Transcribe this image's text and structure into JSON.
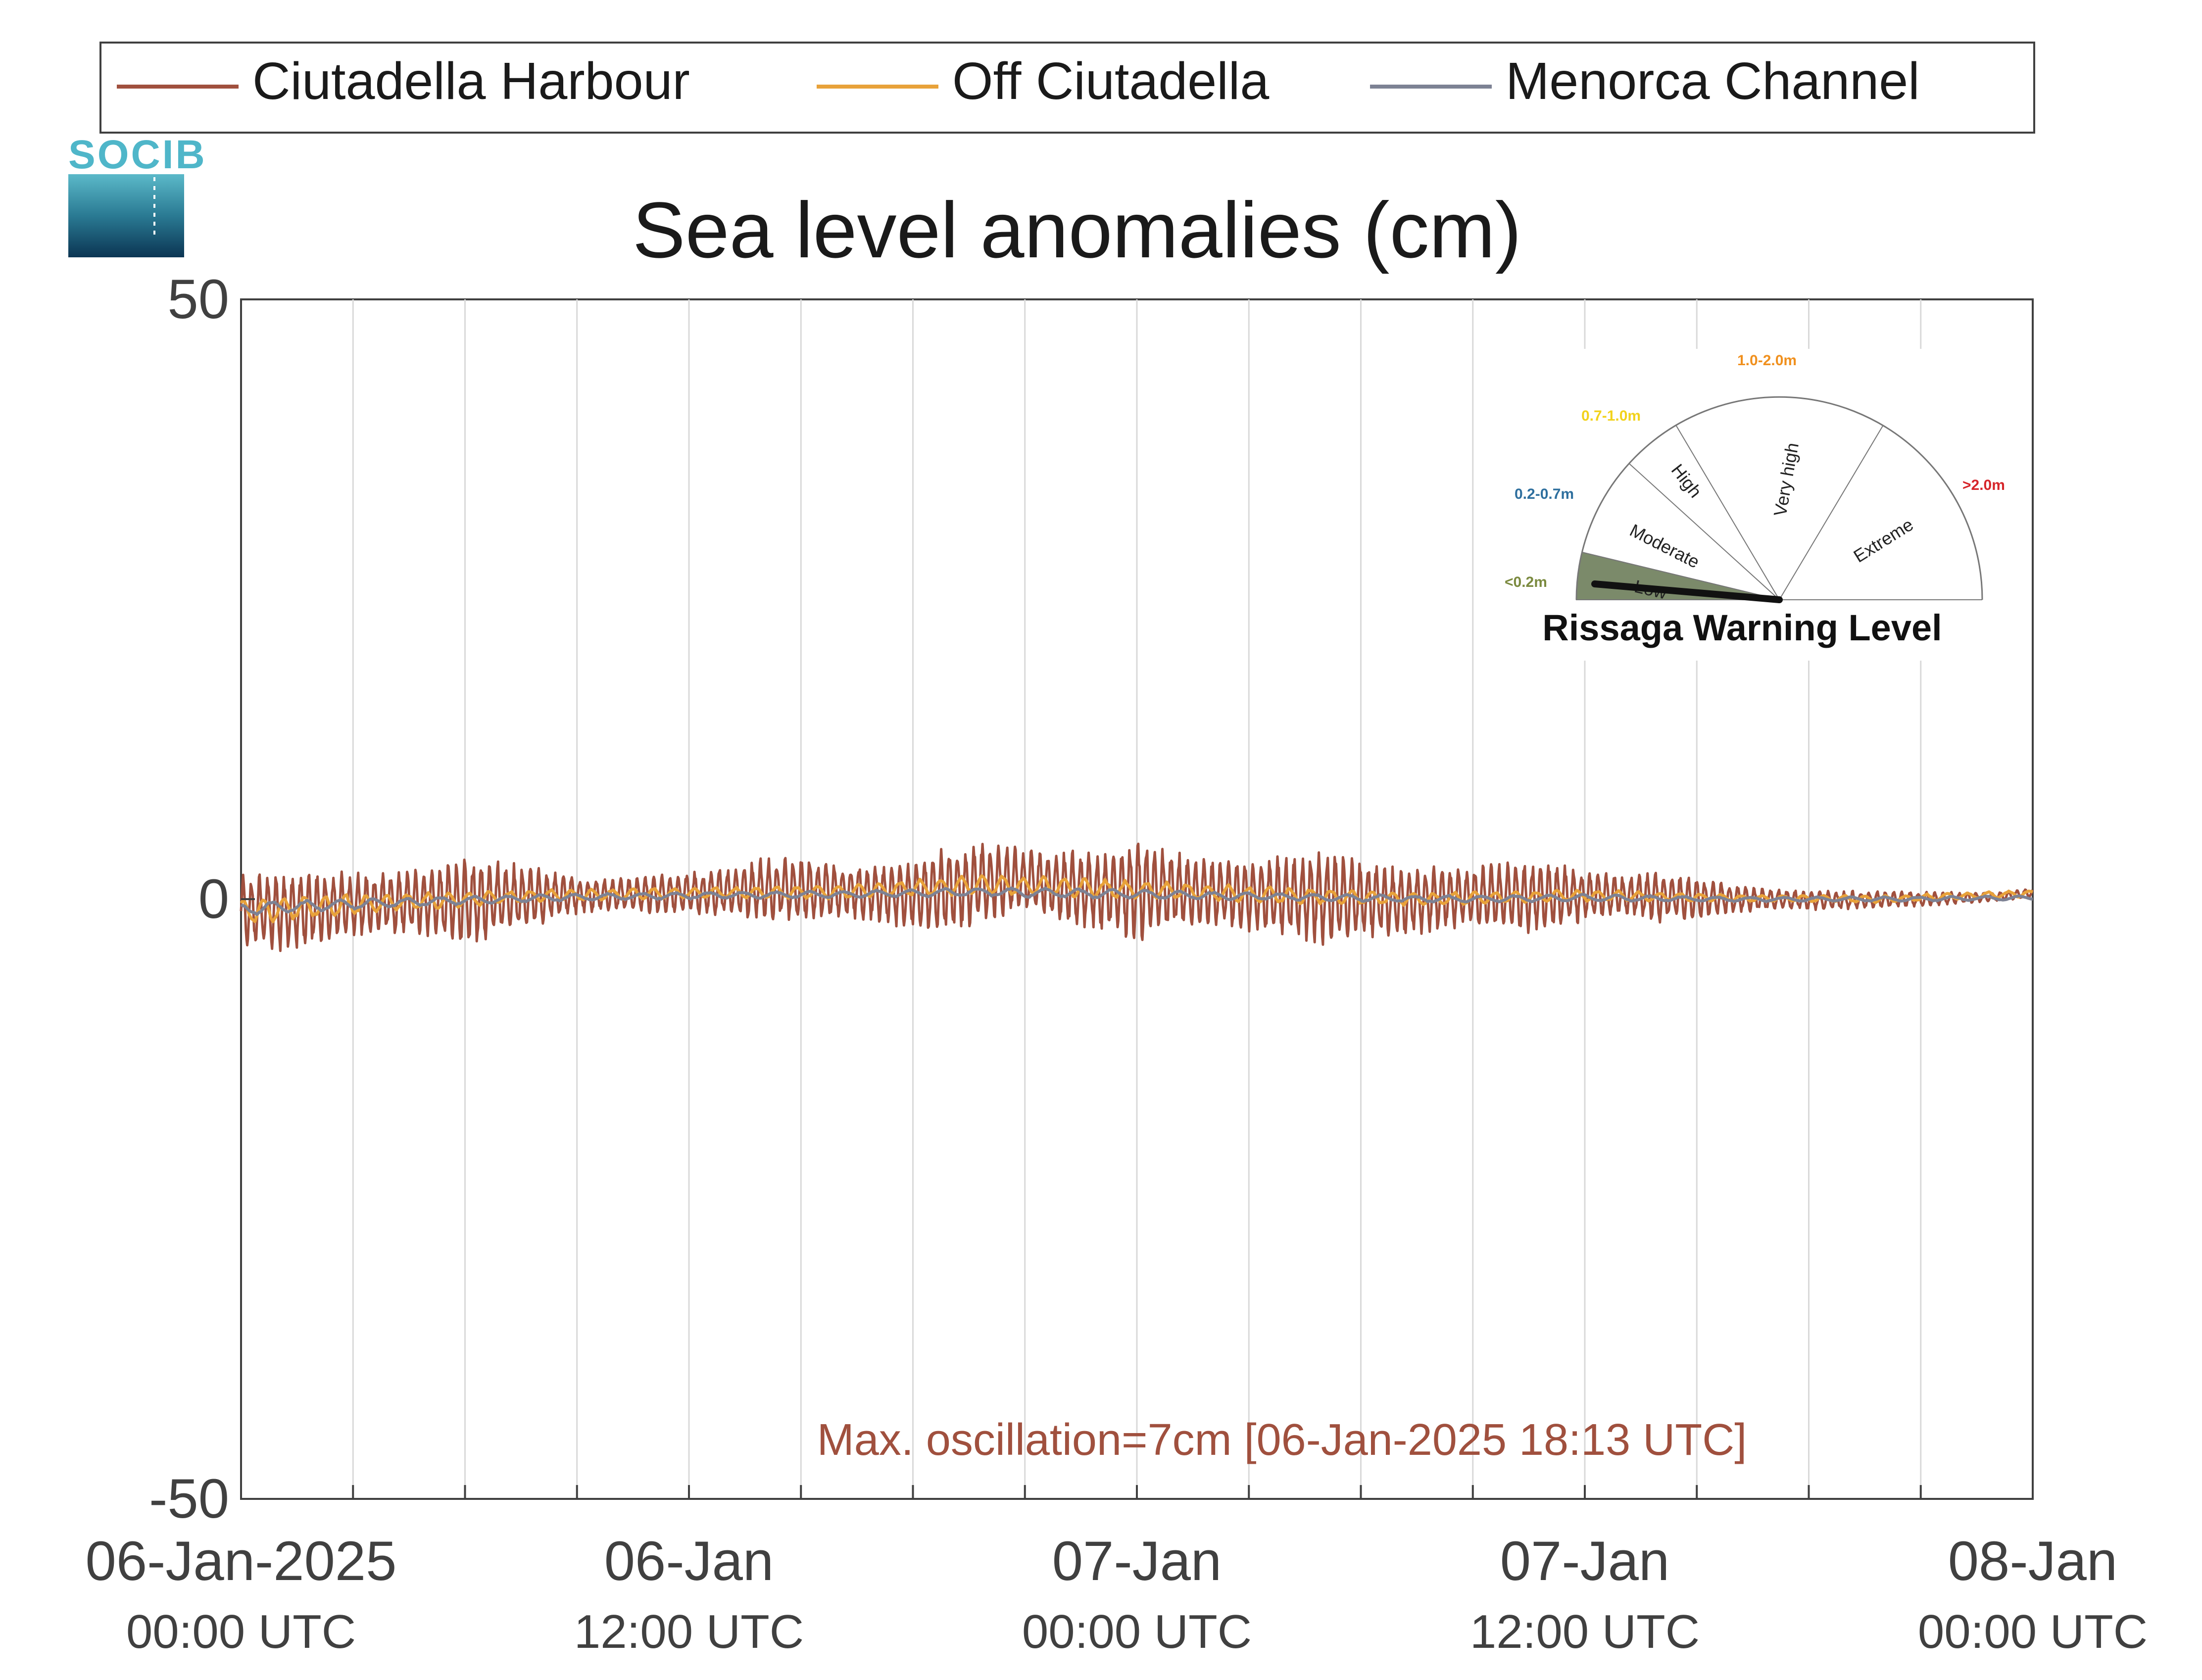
{
  "chart_data": {
    "type": "line",
    "title": "Sea level anomalies (cm)",
    "xlabel": "",
    "ylabel": "",
    "ylim": [
      -50,
      50
    ],
    "yticks": [
      {
        "value": 50,
        "label": "50"
      },
      {
        "value": 0,
        "label": "0"
      },
      {
        "value": -50,
        "label": "-50"
      }
    ],
    "xrange_hours": [
      0,
      48
    ],
    "xtick_labels": [
      {
        "hour": 0,
        "date": "06-Jan-2025",
        "time": "00:00 UTC"
      },
      {
        "hour": 12,
        "date": "06-Jan",
        "time": "12:00 UTC"
      },
      {
        "hour": 24,
        "date": "07-Jan",
        "time": "00:00 UTC"
      },
      {
        "hour": 36,
        "date": "07-Jan",
        "time": "12:00 UTC"
      },
      {
        "hour": 48,
        "date": "08-Jan",
        "time": "00:00 UTC"
      }
    ],
    "grid": "vertical every 3 hours",
    "legend_placement": "top",
    "series": [
      {
        "name": "Ciutadella Harbour",
        "color": "#a0503e",
        "envelope_hours": [
          0,
          1,
          2,
          3,
          4,
          5,
          6,
          7,
          8,
          9,
          10,
          11,
          12,
          13,
          14,
          15,
          16,
          17,
          18,
          19,
          20,
          21,
          22,
          23,
          24,
          25,
          26,
          27,
          28,
          29,
          30,
          31,
          32,
          33,
          34,
          35,
          36,
          37,
          38,
          39,
          40,
          41,
          42,
          43,
          44,
          45,
          46,
          47,
          48
        ],
        "envelope_amplitude_cm": [
          3.0,
          3.5,
          3.2,
          2.8,
          2.6,
          3.0,
          3.8,
          3.4,
          2.4,
          1.6,
          1.4,
          1.6,
          1.8,
          2.2,
          2.8,
          3.0,
          2.4,
          2.4,
          3.2,
          3.8,
          3.4,
          2.8,
          3.2,
          3.6,
          4.4,
          3.4,
          2.8,
          3.2,
          3.6,
          4.0,
          3.6,
          3.0,
          2.8,
          2.6,
          3.0,
          3.2,
          2.2,
          1.8,
          2.2,
          1.8,
          1.2,
          0.9,
          0.8,
          0.8,
          0.7,
          0.6,
          0.5,
          0.4,
          0.4
        ],
        "baseline_cm": [
          -1.0,
          -1.0,
          -0.8,
          -0.5,
          -0.3,
          -0.2,
          -0.2,
          0.0,
          0.2,
          0.3,
          0.4,
          0.4,
          0.5,
          0.6,
          0.8,
          0.8,
          0.7,
          0.5,
          0.3,
          0.8,
          1.4,
          1.6,
          1.0,
          0.6,
          0.8,
          0.7,
          0.5,
          0.3,
          0.2,
          0.1,
          0.0,
          -0.2,
          0.0,
          0.2,
          0.3,
          0.2,
          0.3,
          0.3,
          0.2,
          0.1,
          0.0,
          0.0,
          -0.1,
          -0.1,
          0.0,
          0.0,
          0.1,
          0.2,
          0.5
        ]
      },
      {
        "name": "Off Ciutadella",
        "color": "#e8a23a",
        "envelope_hours": [
          0,
          4,
          8,
          12,
          16,
          20,
          24,
          28,
          32,
          36,
          40,
          44,
          48
        ],
        "envelope_amplitude_cm": [
          1.2,
          0.8,
          0.5,
          0.5,
          0.6,
          0.9,
          0.8,
          0.7,
          0.6,
          0.5,
          0.3,
          0.3,
          0.3
        ],
        "baseline_cm": [
          -1.0,
          -0.3,
          0.3,
          0.5,
          0.6,
          1.2,
          0.8,
          0.3,
          0.0,
          0.3,
          0.1,
          0.0,
          0.5
        ]
      },
      {
        "name": "Menorca Channel",
        "color": "#7d8294",
        "envelope_hours": [
          0,
          4,
          8,
          12,
          16,
          20,
          24,
          28,
          32,
          36,
          40,
          44,
          48
        ],
        "envelope_amplitude_cm": [
          0.6,
          0.4,
          0.3,
          0.3,
          0.3,
          0.4,
          0.4,
          0.3,
          0.3,
          0.3,
          0.2,
          0.2,
          0.2
        ],
        "baseline_cm": [
          -0.8,
          -0.3,
          0.1,
          0.3,
          0.4,
          0.6,
          0.4,
          0.2,
          0.0,
          0.1,
          0.0,
          0.0,
          0.1
        ]
      }
    ],
    "annotation": "Max. oscillation=7cm [06-Jan-2025 18:13 UTC]",
    "annotation_color": "#a0503e"
  },
  "logo": {
    "text": "SOCIB"
  },
  "gauge": {
    "title": "Rissaga Warning Level",
    "needle_level": "Low",
    "sectors": [
      {
        "name": "Low",
        "range": "<0.2m",
        "color": "#7b8a3f",
        "filled": true
      },
      {
        "name": "Moderate",
        "range": "0.2-0.7m",
        "color": "#2e6f9e",
        "filled": false
      },
      {
        "name": "High",
        "range": "0.7-1.0m",
        "color": "#f2d21b",
        "filled": false
      },
      {
        "name": "Very high",
        "range": "1.0-2.0m",
        "color": "#f0901e",
        "filled": false
      },
      {
        "name": "Extreme",
        "range": ">2.0m",
        "color": "#d6252a",
        "filled": false
      }
    ]
  },
  "colors": {
    "axis": "#404040",
    "grid": "#d9d9d9",
    "text": "#1a1a1a",
    "gauge_fill": "#7b8a6a"
  }
}
